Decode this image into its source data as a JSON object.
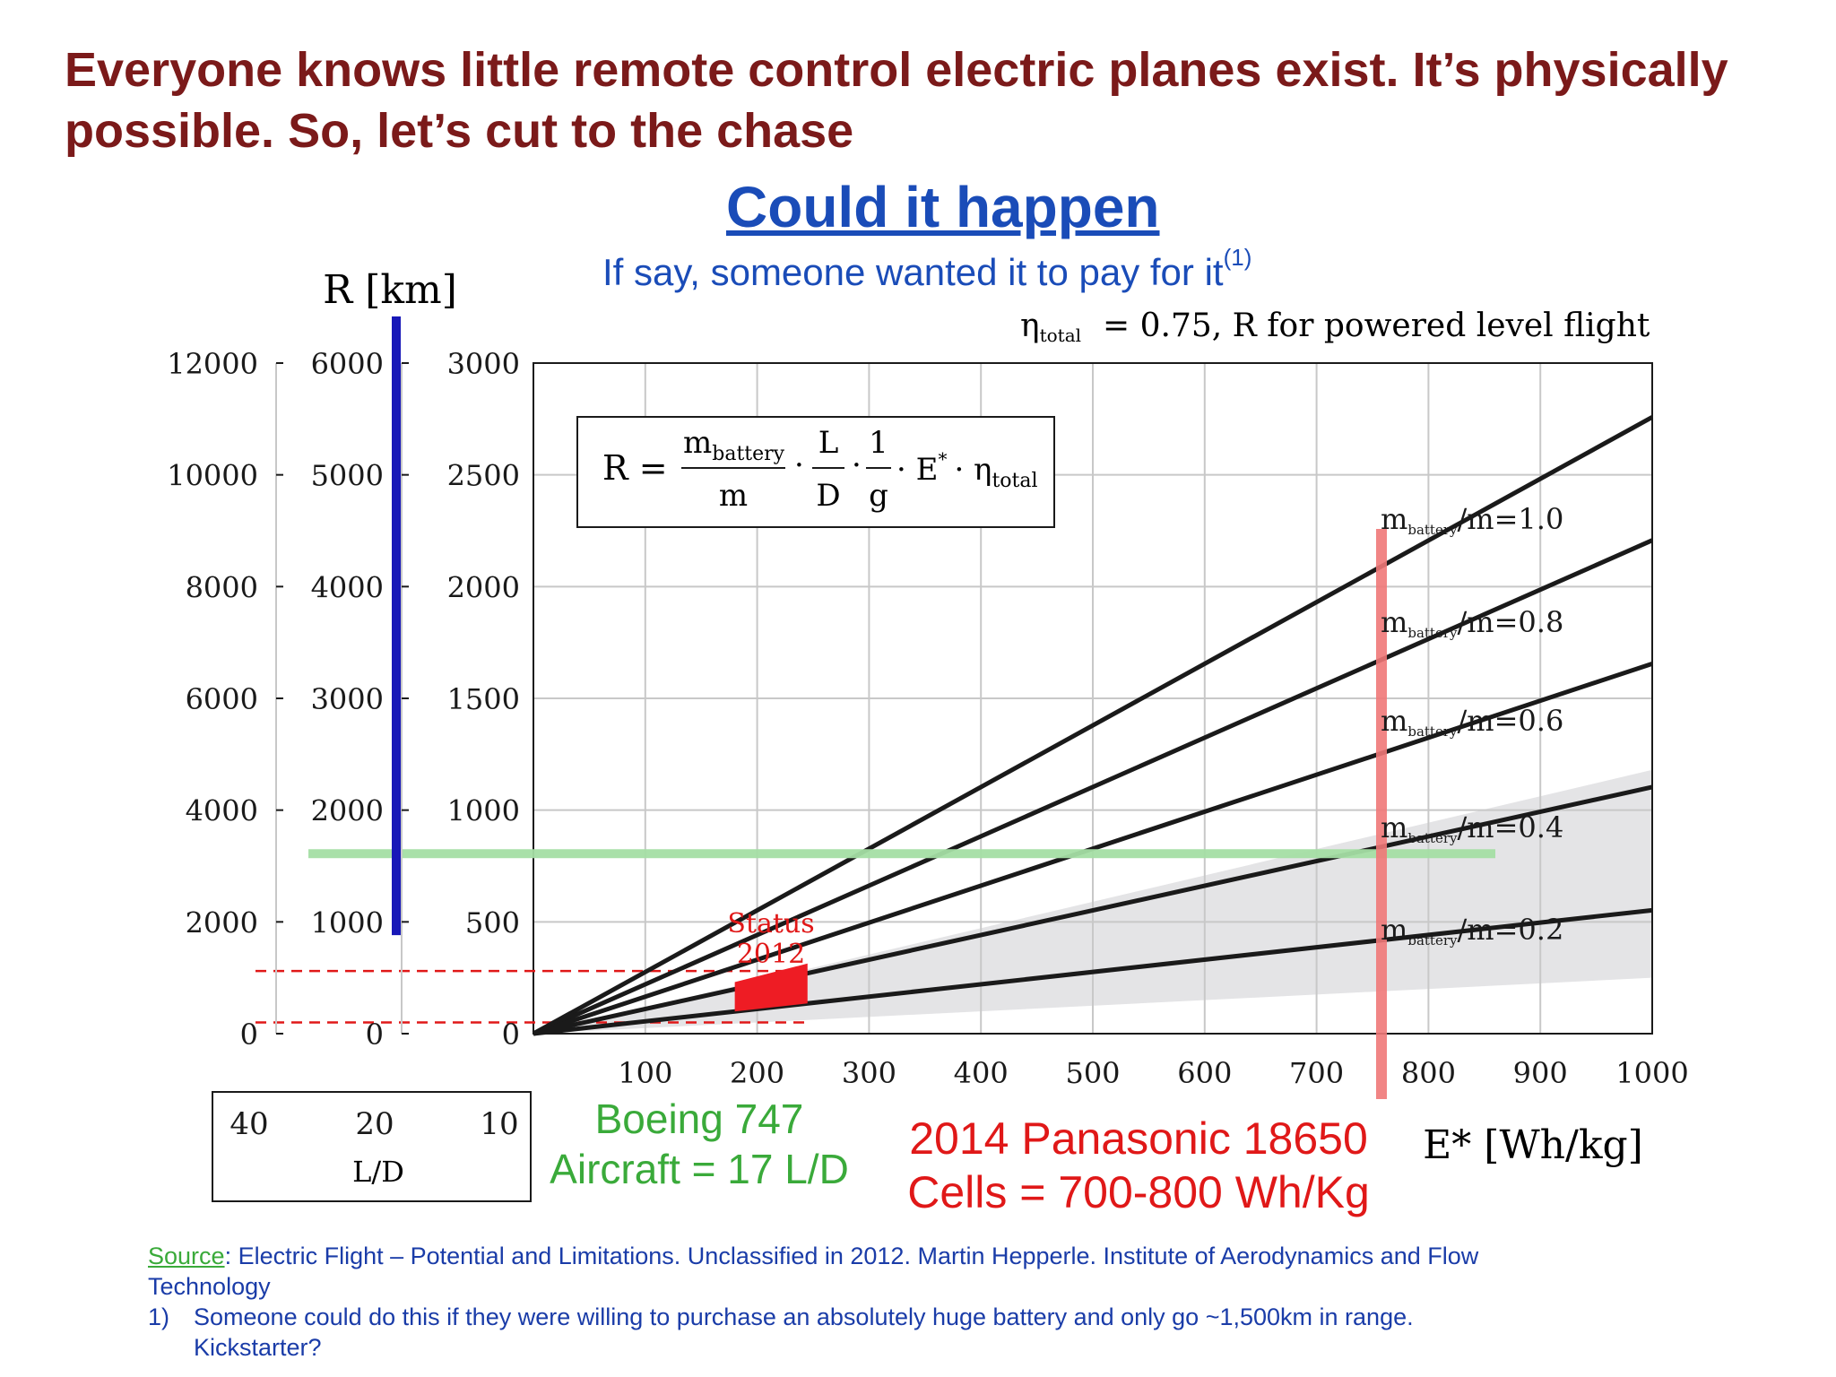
{
  "headline": "Everyone knows little remote control electric planes exist. It’s physically possible. So, let’s cut to the chase",
  "title": "Could it happen",
  "subtitle": "If say, someone wanted it to pay for it",
  "subtitle_sup": "(1)",
  "chart_data": {
    "type": "line",
    "axis_header": "R [km]",
    "condition_label": "= 0.75, R for powered level flight",
    "condition_symbol": "η",
    "condition_symbol_sub": "total",
    "formula": {
      "lhs": "R =",
      "frac1_num": "m",
      "frac1_num_sub": "battery",
      "frac1_den": "m",
      "frac2_num": "L",
      "frac2_den": "D",
      "frac3_num": "1",
      "frac3_den": "g",
      "tail": "· E",
      "tail_sup": "*",
      "eta": "· η",
      "eta_sub": "total"
    },
    "xlabel": "E* [Wh/kg]",
    "xlim": [
      0,
      1000
    ],
    "x_ticks": [
      "100",
      "200",
      "300",
      "400",
      "500",
      "600",
      "700",
      "800",
      "900",
      "1000"
    ],
    "x_tick_values": [
      100,
      200,
      300,
      400,
      500,
      600,
      700,
      800,
      900,
      1000
    ],
    "ylim": [
      0,
      3000
    ],
    "y_axes": [
      {
        "ld": "40",
        "ticks": [
          "0",
          "2000",
          "4000",
          "6000",
          "8000",
          "10000",
          "12000"
        ]
      },
      {
        "ld": "20",
        "ticks": [
          "0",
          "1000",
          "2000",
          "3000",
          "4000",
          "5000",
          "6000"
        ]
      },
      {
        "ld": "10",
        "ticks": [
          "0",
          "500",
          "1000",
          "1500",
          "2000",
          "2500",
          "3000"
        ]
      }
    ],
    "ld_label": "L/D",
    "series": [
      {
        "name": "m_battery/m=1.0",
        "label_main": "m",
        "label_sub": "battery",
        "label_tail": "/m=1.0",
        "x": [
          0,
          1000
        ],
        "y": [
          0,
          2758
        ]
      },
      {
        "name": "m_battery/m=0.8",
        "label_main": "m",
        "label_sub": "battery",
        "label_tail": "/m=0.8",
        "x": [
          0,
          1000
        ],
        "y": [
          0,
          2207
        ]
      },
      {
        "name": "m_battery/m=0.6",
        "label_main": "m",
        "label_sub": "battery",
        "label_tail": "/m=0.6",
        "x": [
          0,
          1000
        ],
        "y": [
          0,
          1655
        ]
      },
      {
        "name": "m_battery/m=0.4",
        "label_main": "m",
        "label_sub": "battery",
        "label_tail": "/m=0.4",
        "x": [
          0,
          1000
        ],
        "y": [
          0,
          1103
        ]
      },
      {
        "name": "m_battery/m=0.2",
        "label_main": "m",
        "label_sub": "battery",
        "label_tail": "/m=0.2",
        "x": [
          0,
          1000
        ],
        "y": [
          0,
          552
        ]
      }
    ],
    "shaded_band": {
      "x": [
        0,
        1000
      ],
      "y_low": [
        0,
        250
      ],
      "y_high": [
        0,
        1180
      ]
    },
    "status_region": {
      "label": "Status 2012",
      "label_line1": "Status",
      "label_line2": "2012",
      "x_range": [
        180,
        245
      ]
    },
    "annotations": {
      "vertical_red_line_x": 750,
      "horizontal_green_line_y": 805,
      "dashed_lines_y": [
        280,
        50
      ],
      "blue_bar_range_y": [
        200,
        3000
      ]
    },
    "colors": {
      "series": "#1a1a1a",
      "band": "#e4e4e6",
      "status": "#ee1c24",
      "status_label": "#e01818",
      "red_line": "#f07878",
      "green_line": "#a4dea4",
      "blue_bar": "#1818b8",
      "dashed": "#e01818",
      "grid": "#c8c8c8"
    }
  },
  "boeing_note_line1": "Boeing 747",
  "boeing_note_line2": "Aircraft = 17 L/D",
  "battery_note_line1": "2014 Panasonic 18650",
  "battery_note_line2": "Cells = 700-800 Wh/Kg",
  "footer": {
    "source_label": "Source",
    "source_text": ":  Electric Flight – Potential and Limitations. Unclassified in 2012. Martin Hepperle. Institute of Aerodynamics and Flow Technology",
    "footnote_number": "1)",
    "footnote_text": "Someone could do this if they were willing to purchase an absolutely huge battery and only go ~1,500km in range. Kickstarter?"
  }
}
